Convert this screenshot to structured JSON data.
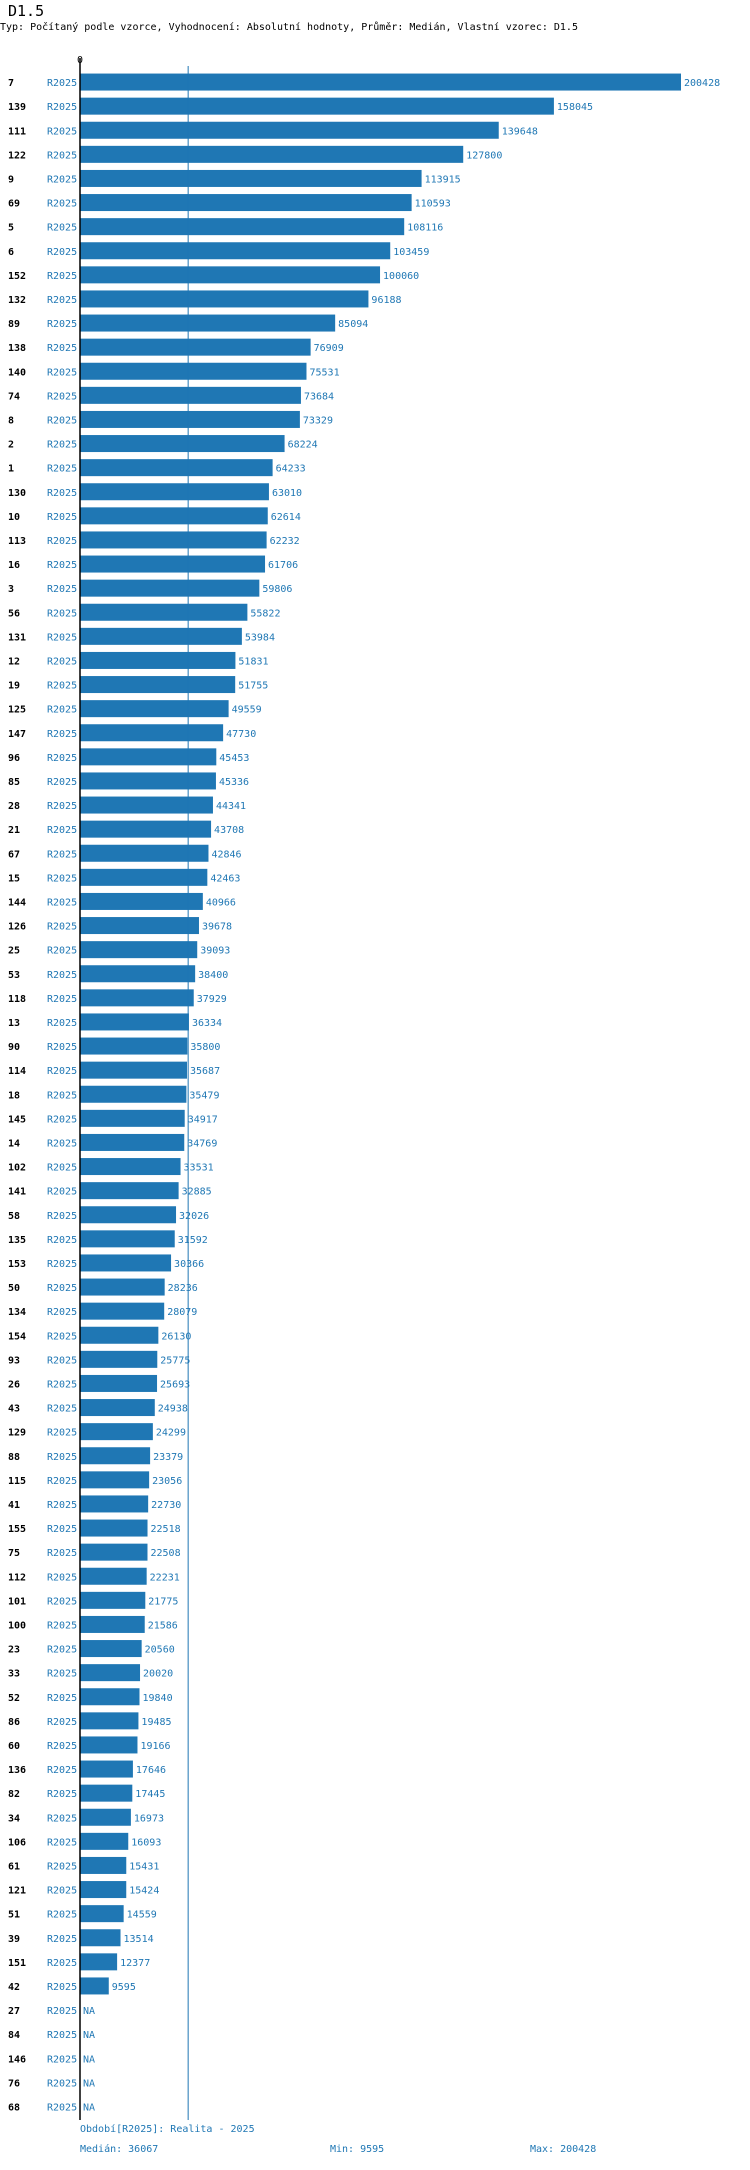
{
  "title": "D1.5",
  "subtitle": "Typ: Počítaný podle vzorce, Vyhodnocení: Absolutní hodnoty, Průměr: Medián, Vlastní vzorec: D1.5",
  "colors": {
    "bar": "#1f77b4",
    "text": "#1f77b4",
    "axis": "#000000"
  },
  "chart_data": {
    "type": "bar",
    "orientation": "horizontal",
    "title": "D1.5",
    "xlim": [
      0,
      200428
    ],
    "x_tick_labels": [
      "0"
    ],
    "period": "R2025",
    "median": 36067,
    "median_line": true,
    "categories": [
      "7",
      "139",
      "111",
      "122",
      "9",
      "69",
      "5",
      "6",
      "152",
      "132",
      "89",
      "138",
      "140",
      "74",
      "8",
      "2",
      "1",
      "130",
      "10",
      "113",
      "16",
      "3",
      "56",
      "131",
      "12",
      "19",
      "125",
      "147",
      "96",
      "85",
      "28",
      "21",
      "67",
      "15",
      "144",
      "126",
      "25",
      "53",
      "118",
      "13",
      "90",
      "114",
      "18",
      "145",
      "14",
      "102",
      "141",
      "58",
      "135",
      "153",
      "50",
      "134",
      "154",
      "93",
      "26",
      "43",
      "129",
      "88",
      "115",
      "41",
      "155",
      "75",
      "112",
      "101",
      "100",
      "23",
      "33",
      "52",
      "86",
      "60",
      "136",
      "82",
      "34",
      "106",
      "61",
      "121",
      "51",
      "39",
      "151",
      "42",
      "27",
      "84",
      "146",
      "76",
      "68"
    ],
    "values": [
      200428,
      158045,
      139648,
      127800,
      113915,
      110593,
      108116,
      103459,
      100060,
      96188,
      85094,
      76909,
      75531,
      73684,
      73329,
      68224,
      64233,
      63010,
      62614,
      62232,
      61706,
      59806,
      55822,
      53984,
      51831,
      51755,
      49559,
      47730,
      45453,
      45336,
      44341,
      43708,
      42846,
      42463,
      40966,
      39678,
      39093,
      38400,
      37929,
      36334,
      35800,
      35687,
      35479,
      34917,
      34769,
      33531,
      32885,
      32026,
      31592,
      30366,
      28236,
      28079,
      26130,
      25775,
      25693,
      24938,
      24299,
      23379,
      23056,
      22730,
      22518,
      22508,
      22231,
      21775,
      21586,
      20560,
      20020,
      19840,
      19485,
      19166,
      17646,
      17445,
      16973,
      16093,
      15431,
      15424,
      14559,
      13514,
      12377,
      9595,
      null,
      null,
      null,
      null,
      null
    ],
    "na_label": "NA"
  },
  "footer": {
    "period": "Období[R2025]: Realita - 2025",
    "median": "Medián: 36067",
    "min": "Min: 9595",
    "max": "Max: 200428"
  }
}
